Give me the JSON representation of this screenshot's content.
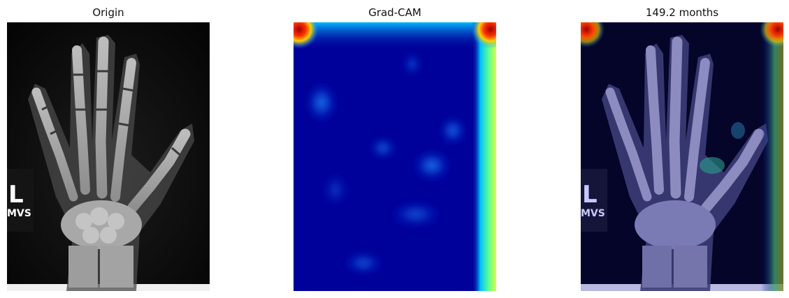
{
  "panels": [
    {
      "title": "Origin",
      "icon": "hand-xray-image"
    },
    {
      "title": "Grad-CAM",
      "icon": "heatmap-image"
    },
    {
      "title": "149.2 months",
      "icon": "overlay-image"
    }
  ],
  "xray_marker": {
    "letter": "L",
    "initials": "MVS"
  }
}
